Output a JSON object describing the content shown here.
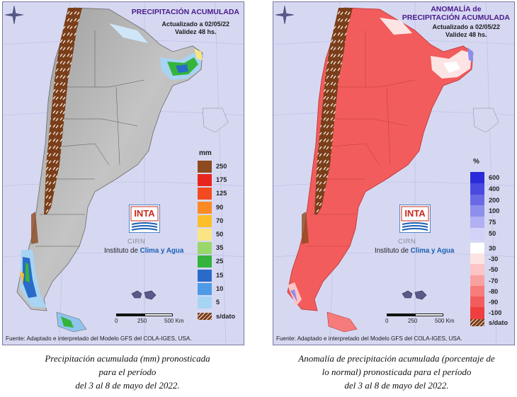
{
  "left_map": {
    "title": "PRECIPITACIÓN ACUMULADA",
    "updated": "Actualizado a 02/05/22",
    "validity": "Validez 48 hs.",
    "legend_unit": "mm",
    "legend": [
      {
        "label": "250",
        "color": "#8c4a1e"
      },
      {
        "label": "175",
        "color": "#e8241c"
      },
      {
        "label": "125",
        "color": "#f44a20"
      },
      {
        "label": "90",
        "color": "#fb8a22"
      },
      {
        "label": "70",
        "color": "#fcbf2a"
      },
      {
        "label": "50",
        "color": "#fae483"
      },
      {
        "label": "35",
        "color": "#98d86a"
      },
      {
        "label": "25",
        "color": "#34b43c"
      },
      {
        "label": "15",
        "color": "#2a6ac8"
      },
      {
        "label": "10",
        "color": "#4f9ae6"
      },
      {
        "label": "5",
        "color": "#a8d4f4"
      }
    ],
    "nodata_label": "s/dato",
    "source": "Fuente: Adaptado e interpretado del Modelo GFS del COLA-IGES, USA.",
    "caption": [
      "Precipitación acumulada (mm) pronosticada",
      "para el período",
      "del 3 al 8 de mayo del 2022."
    ]
  },
  "right_map": {
    "title_line1": "ANOMALÍA de",
    "title_line2": "PRECIPITACIÓN ACUMULADA",
    "updated": "Actualizado a 02/05/22",
    "validity": "Validez 48 hs.",
    "legend_unit": "%",
    "legend_positive": [
      {
        "label": "600",
        "color": "#2a2ad8"
      },
      {
        "label": "400",
        "color": "#4a4ae0"
      },
      {
        "label": "200",
        "color": "#6a6ae6"
      },
      {
        "label": "100",
        "color": "#8e8eec"
      },
      {
        "label": "75",
        "color": "#b0b0f2"
      },
      {
        "label": "50",
        "color": "#d2d2f8"
      }
    ],
    "legend_negative": [
      {
        "label": "30",
        "color": "#ffffff"
      },
      {
        "label": "-30",
        "color": "#fde4e4"
      },
      {
        "label": "-50",
        "color": "#fcc4c4"
      },
      {
        "label": "-70",
        "color": "#f9a0a0"
      },
      {
        "label": "-80",
        "color": "#f67c7c"
      },
      {
        "label": "-90",
        "color": "#f25c5c"
      },
      {
        "label": "-100",
        "color": "#ee3e3e"
      }
    ],
    "nodata_label": "s/dato",
    "source": "Fuente: Adaptado e interpretado del Modelo GFS del COLA-IGES, USA.",
    "caption": [
      "Anomalía de precipitación acumulada (porcentaje de",
      "lo normal) pronosticada para el período",
      "del 3 al 8 de mayo del 2022."
    ]
  },
  "branding": {
    "logo_text": "INTA",
    "cirn_text": "CIRN",
    "institute_prefix": "Instituto de ",
    "institute_highlight": "Clima y Agua"
  },
  "scale_bar": {
    "tick_0": "0",
    "tick_250": "250",
    "tick_500": "500 Km"
  }
}
